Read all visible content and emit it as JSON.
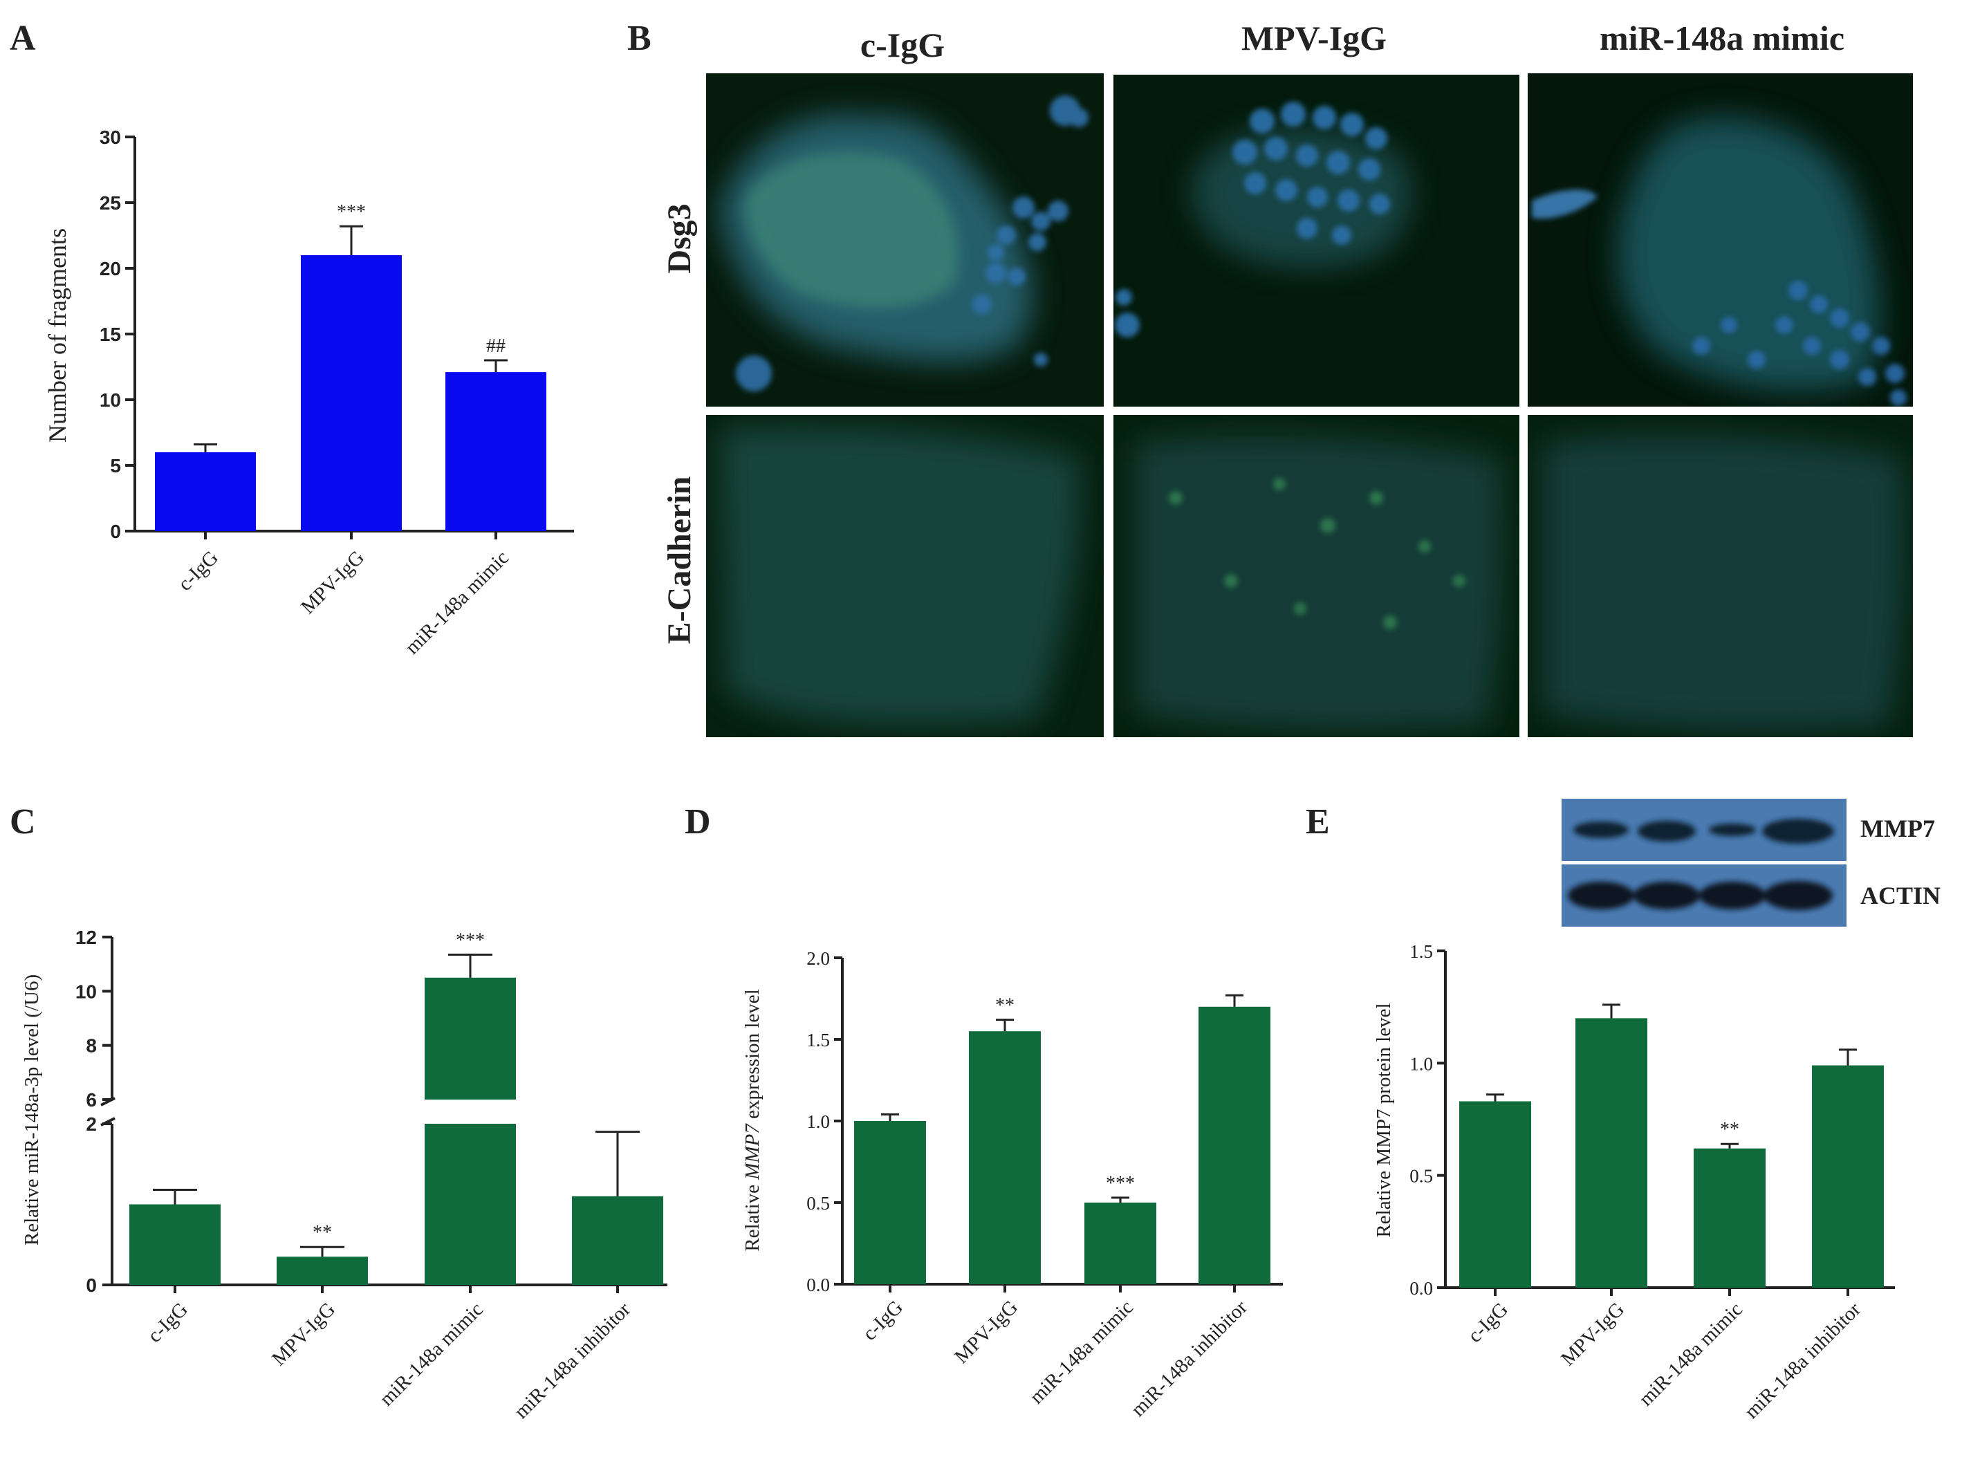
{
  "panel_labels": {
    "a": "A",
    "b": "B",
    "c": "C",
    "d": "D",
    "e": "E"
  },
  "colors": {
    "blue_bar": "#0a0af0",
    "green_bar": "#0f6a3c",
    "axis": "#222222"
  },
  "micrographs": {
    "columns": [
      "c-IgG",
      "MPV-IgG",
      "miR-148a mimic"
    ],
    "rows": [
      "Dsg3",
      "E-Cadherin"
    ]
  },
  "western_blot": {
    "bands": [
      "MMP7",
      "ACTIN"
    ]
  },
  "chart_data": [
    {
      "id": "A",
      "type": "bar",
      "categories": [
        "c-IgG",
        "MPV-IgG",
        "miR-148a mimic"
      ],
      "values": [
        6.0,
        21.0,
        12.1
      ],
      "errors": [
        0.6,
        2.2,
        0.9
      ],
      "annotations": [
        "",
        "***",
        "##"
      ],
      "ylabel": "Number of fragments",
      "ylim": [
        0,
        30
      ],
      "yticks": [
        0,
        5,
        10,
        15,
        20,
        25,
        30
      ],
      "color": "#0a0af0"
    },
    {
      "id": "C",
      "type": "bar",
      "broken_axis": true,
      "categories": [
        "c-IgG",
        "MPV-IgG",
        "miR-148a mimic",
        "miR-148a inhibitor"
      ],
      "values": [
        1.0,
        0.35,
        10.5,
        1.1
      ],
      "errors": [
        0.18,
        0.12,
        0.85,
        0.8
      ],
      "annotations": [
        "",
        "**",
        "***",
        ""
      ],
      "ylabel": "Relative miR-148a-3p level (/U6)",
      "lower_ticks": [
        0,
        2
      ],
      "upper_ticks": [
        6,
        8,
        10,
        12
      ],
      "ylim_lower": [
        0,
        2
      ],
      "ylim_upper": [
        6,
        12
      ],
      "color": "#0f6a3c"
    },
    {
      "id": "D",
      "type": "bar",
      "categories": [
        "c-IgG",
        "MPV-IgG",
        "miR-148a mimic",
        "miR-148a inhibitor"
      ],
      "values": [
        1.0,
        1.55,
        0.5,
        1.7
      ],
      "errors": [
        0.04,
        0.07,
        0.03,
        0.07
      ],
      "annotations": [
        "",
        "**",
        "***",
        ""
      ],
      "ylabel_pre": "Relative ",
      "ylabel_em": "MMP7",
      "ylabel_post": " expression level",
      "ylim": [
        0,
        2.0
      ],
      "yticks": [
        "0.0",
        "0.5",
        "1.0",
        "1.5",
        "2.0"
      ],
      "color": "#0f6a3c"
    },
    {
      "id": "E",
      "type": "bar",
      "categories": [
        "c-IgG",
        "MPV-IgG",
        "miR-148a mimic",
        "miR-148a inhibitor"
      ],
      "values": [
        0.83,
        1.2,
        0.62,
        0.99
      ],
      "errors": [
        0.03,
        0.06,
        0.02,
        0.07
      ],
      "annotations": [
        "",
        "",
        "**",
        ""
      ],
      "ylabel": "Relative MMP7 protein level",
      "ylim": [
        0,
        1.5
      ],
      "yticks": [
        "0.0",
        "0.5",
        "1.0",
        "1.5"
      ],
      "color": "#0f6a3c"
    }
  ]
}
